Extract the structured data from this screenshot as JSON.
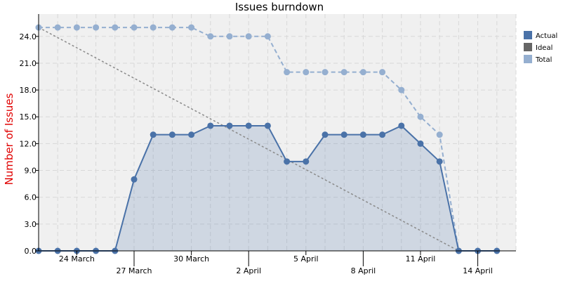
{
  "chart_data": {
    "type": "line",
    "title": "Issues burndown",
    "xlabel": "",
    "ylabel": "Number of Issues",
    "ylim": [
      0,
      26.5
    ],
    "xlim": [
      "2024-03-22",
      "2024-04-16"
    ],
    "y_ticks": [
      "0.0",
      "3.0",
      "6.0",
      "9.0",
      "12.0",
      "15.0",
      "18.0",
      "21.0",
      "24.0"
    ],
    "x_ticks": [
      {
        "date": "2024-03-24",
        "label": "24 March",
        "row": 1
      },
      {
        "date": "2024-03-27",
        "label": "27 March",
        "row": 2
      },
      {
        "date": "2024-03-30",
        "label": "30 March",
        "row": 1
      },
      {
        "date": "2024-04-02",
        "label": "2 April",
        "row": 2
      },
      {
        "date": "2024-04-05",
        "label": "5 April",
        "row": 1
      },
      {
        "date": "2024-04-08",
        "label": "8 April",
        "row": 2
      },
      {
        "date": "2024-04-11",
        "label": "11 April",
        "row": 1
      },
      {
        "date": "2024-04-14",
        "label": "14 April",
        "row": 2
      }
    ],
    "grid": true,
    "legend_position": "right",
    "colors": {
      "actual": "#4a72a8",
      "ideal": "#666666",
      "total": "#95afd0",
      "plot_bg": "#f0f0f0",
      "grid": "#d8d8d8"
    },
    "series": [
      {
        "name": "Actual",
        "style": "solid-area",
        "x": [
          "2024-03-22",
          "2024-03-23",
          "2024-03-24",
          "2024-03-25",
          "2024-03-26",
          "2024-03-27",
          "2024-03-28",
          "2024-03-29",
          "2024-03-30",
          "2024-03-31",
          "2024-04-01",
          "2024-04-02",
          "2024-04-03",
          "2024-04-04",
          "2024-04-05",
          "2024-04-06",
          "2024-04-07",
          "2024-04-08",
          "2024-04-09",
          "2024-04-10",
          "2024-04-11",
          "2024-04-12",
          "2024-04-13",
          "2024-04-14",
          "2024-04-15"
        ],
        "values": [
          0,
          0,
          0,
          0,
          0,
          8,
          13,
          13,
          13,
          14,
          14,
          14,
          14,
          10,
          10,
          13,
          13,
          13,
          13,
          14,
          12,
          10,
          0,
          0,
          0
        ]
      },
      {
        "name": "Ideal",
        "style": "dotted",
        "x": [
          "2024-03-22",
          "2024-04-13"
        ],
        "values": [
          25,
          0
        ]
      },
      {
        "name": "Total",
        "style": "dashed",
        "x": [
          "2024-03-22",
          "2024-03-23",
          "2024-03-24",
          "2024-03-25",
          "2024-03-26",
          "2024-03-27",
          "2024-03-28",
          "2024-03-29",
          "2024-03-30",
          "2024-03-31",
          "2024-04-01",
          "2024-04-02",
          "2024-04-03",
          "2024-04-04",
          "2024-04-05",
          "2024-04-06",
          "2024-04-07",
          "2024-04-08",
          "2024-04-09",
          "2024-04-10",
          "2024-04-11",
          "2024-04-12",
          "2024-04-13"
        ],
        "values": [
          25,
          25,
          25,
          25,
          25,
          25,
          25,
          25,
          25,
          24,
          24,
          24,
          24,
          20,
          20,
          20,
          20,
          20,
          20,
          18,
          15,
          13,
          0
        ]
      }
    ]
  }
}
